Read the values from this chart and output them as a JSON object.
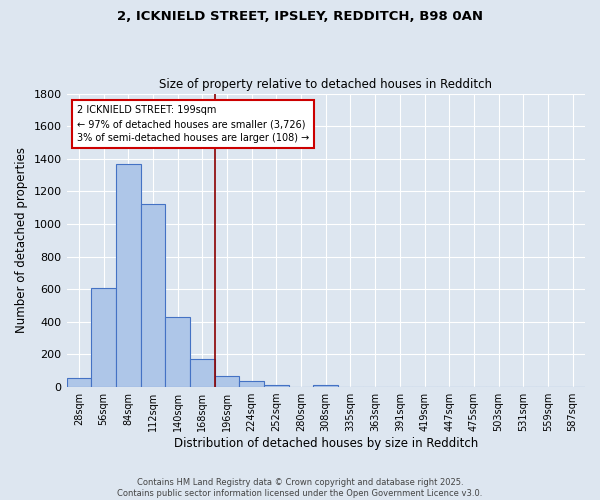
{
  "title_line1": "2, ICKNIELD STREET, IPSLEY, REDDITCH, B98 0AN",
  "title_line2": "Size of property relative to detached houses in Redditch",
  "xlabel": "Distribution of detached houses by size in Redditch",
  "ylabel": "Number of detached properties",
  "footer_line1": "Contains HM Land Registry data © Crown copyright and database right 2025.",
  "footer_line2": "Contains public sector information licensed under the Open Government Licence v3.0.",
  "bin_labels": [
    "28sqm",
    "56sqm",
    "84sqm",
    "112sqm",
    "140sqm",
    "168sqm",
    "196sqm",
    "224sqm",
    "252sqm",
    "280sqm",
    "308sqm",
    "335sqm",
    "363sqm",
    "391sqm",
    "419sqm",
    "447sqm",
    "475sqm",
    "503sqm",
    "531sqm",
    "559sqm",
    "587sqm"
  ],
  "bar_values": [
    55,
    605,
    1365,
    1125,
    430,
    170,
    65,
    35,
    10,
    0,
    15,
    0,
    0,
    0,
    0,
    0,
    0,
    0,
    0,
    0,
    0
  ],
  "bar_color": "#aec6e8",
  "bar_edge_color": "#4472c4",
  "bg_color": "#dde6f0",
  "grid_color": "#ffffff",
  "vline_x": 5.5,
  "vline_color": "#8b0000",
  "annotation_text": "2 ICKNIELD STREET: 199sqm\n← 97% of detached houses are smaller (3,726)\n3% of semi-detached houses are larger (108) →",
  "annotation_box_color": "#ffffff",
  "annotation_box_edge": "#cc0000",
  "ylim": [
    0,
    1800
  ],
  "yticks": [
    0,
    200,
    400,
    600,
    800,
    1000,
    1200,
    1400,
    1600,
    1800
  ]
}
